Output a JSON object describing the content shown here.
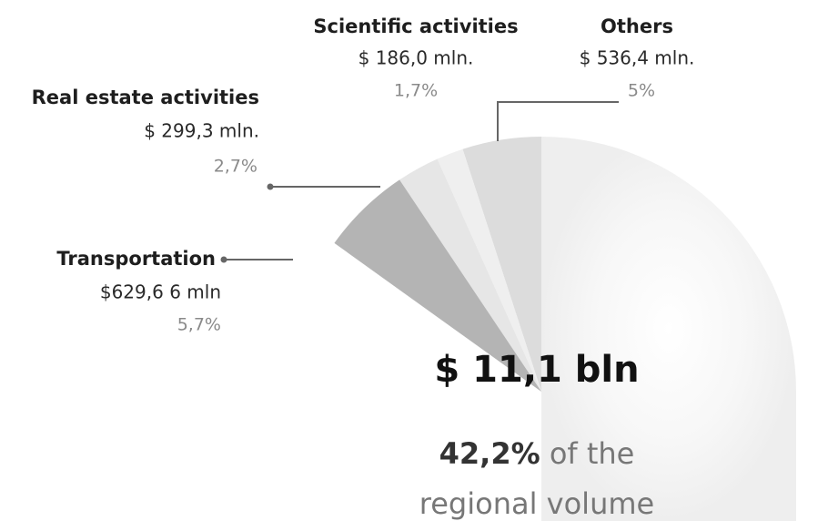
{
  "chart_data": {
    "type": "pie",
    "categories": [
      "Others",
      "Scientific activities",
      "Real estate activities",
      "Transportation"
    ],
    "values": [
      5,
      1.7,
      2.7,
      5.7
    ],
    "value_labels": [
      "5%",
      "1,7%",
      "2,7%",
      "5,7%"
    ],
    "amount_labels": [
      "$ 536,4 mln.",
      "$ 186,0 mln.",
      "$ 299,3 mln.",
      "$629,6 6 mln"
    ],
    "colors": [
      "#dcdcdc",
      "#efefef",
      "#e6e6e6",
      "#b4b4b4"
    ],
    "total_label": "$ 11,1 bln",
    "share_label": "42,2%",
    "share_text": [
      "of the",
      "regional volume"
    ]
  }
}
